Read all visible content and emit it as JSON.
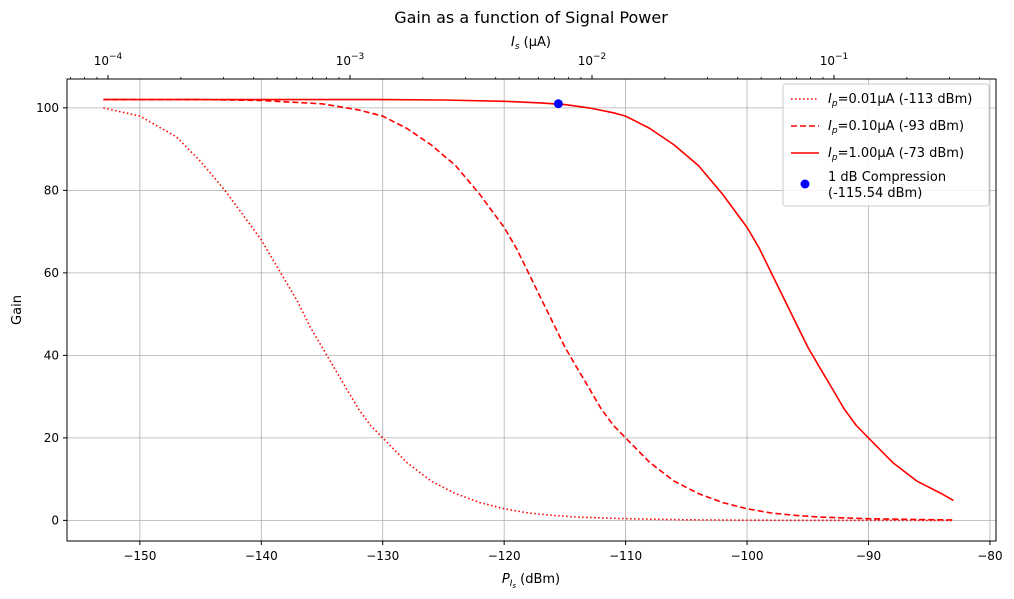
{
  "chart_data": {
    "type": "line",
    "title": "Gain as a function of Signal Power",
    "xlabel": {
      "base": "P",
      "sub": "I",
      "subsub": "s",
      "unit": " (dBm)"
    },
    "ylabel": "Gain",
    "top_xlabel": {
      "base": "I",
      "sub": "s",
      "unit": " (μA)"
    },
    "xlim": [
      -156,
      -79.5
    ],
    "ylim": [
      -5,
      107
    ],
    "xticks": [
      -150,
      -140,
      -130,
      -120,
      -110,
      -100,
      -90,
      -80
    ],
    "xtick_labels": [
      "−150",
      "−140",
      "−130",
      "−120",
      "−110",
      "−100",
      "−90",
      "−80"
    ],
    "yticks": [
      0,
      20,
      40,
      60,
      80,
      100
    ],
    "ytick_labels": [
      "0",
      "20",
      "40",
      "60",
      "80",
      "100"
    ],
    "top_axis": {
      "scale": "log",
      "major_ticks": [
        {
          "mantissa": "10",
          "exponent": "−4",
          "value": 0.0001
        },
        {
          "mantissa": "10",
          "exponent": "−3",
          "value": 0.001
        },
        {
          "mantissa": "10",
          "exponent": "−2",
          "value": 0.01
        },
        {
          "mantissa": "10",
          "exponent": "−1",
          "value": 0.1
        }
      ]
    },
    "grid": true,
    "legend_position": "top-right",
    "series": [
      {
        "name_prefix": "I",
        "name_sub": "p",
        "name_suffix": "=0.01μA (-113 dBm)",
        "color": "#ff0000",
        "style": "dotted",
        "x": [
          -153,
          -150,
          -147,
          -145,
          -143,
          -141,
          -140,
          -139,
          -138,
          -137,
          -136,
          -135,
          -134,
          -133,
          -132,
          -131,
          -130,
          -128,
          -126,
          -124,
          -122,
          -120,
          -118,
          -116,
          -114,
          -110,
          -105,
          -100,
          -95,
          -90,
          -85,
          -83
        ],
        "y": [
          100,
          98,
          93,
          87,
          80,
          72,
          68,
          63,
          58,
          53,
          47,
          42,
          37,
          32,
          27,
          23,
          20,
          14,
          9.5,
          6.5,
          4.3,
          2.8,
          1.8,
          1.2,
          0.8,
          0.4,
          0.15,
          0.05,
          0.02,
          0.01,
          0,
          0
        ]
      },
      {
        "name_prefix": "I",
        "name_sub": "p",
        "name_suffix": "=0.10μA (-93 dBm)",
        "color": "#ff0000",
        "style": "dashed",
        "x": [
          -153,
          -145,
          -140,
          -135,
          -132,
          -130,
          -128,
          -126,
          -124,
          -122,
          -121,
          -120,
          -119,
          -118,
          -117,
          -116,
          -115,
          -114,
          -113,
          -112,
          -111,
          -110,
          -108,
          -106,
          -104,
          -102,
          -100,
          -98,
          -96,
          -94,
          -90,
          -86,
          -83
        ],
        "y": [
          102,
          102,
          101.8,
          101,
          99.5,
          98,
          95,
          91,
          86,
          79,
          75,
          71,
          66,
          60,
          54,
          48,
          42,
          37,
          32,
          27,
          23,
          20,
          14,
          9.5,
          6.5,
          4.3,
          2.8,
          1.8,
          1.2,
          0.8,
          0.4,
          0.2,
          0.1
        ]
      },
      {
        "name_prefix": "I",
        "name_sub": "p",
        "name_suffix": "=1.00μA (-73 dBm)",
        "color": "#ff0000",
        "style": "solid",
        "x": [
          -153,
          -140,
          -130,
          -125,
          -120,
          -117,
          -115,
          -113,
          -111,
          -110,
          -108,
          -106,
          -104,
          -102,
          -100,
          -99,
          -98,
          -97,
          -96,
          -95,
          -94,
          -93,
          -92,
          -91,
          -90,
          -88,
          -86,
          -84,
          -83
        ],
        "y": [
          102,
          102,
          102,
          101.9,
          101.6,
          101.2,
          100.8,
          100,
          98.8,
          98,
          95,
          91,
          86,
          79,
          71,
          66,
          60,
          54,
          48,
          42,
          37,
          32,
          27,
          23,
          20,
          14,
          9.5,
          6.5,
          4.8
        ]
      }
    ],
    "markers": [
      {
        "label_line1": "1 dB Compression",
        "label_line2": "(-115.54 dBm)",
        "x": -115.54,
        "y": 101,
        "color": "#0000ff"
      }
    ]
  }
}
